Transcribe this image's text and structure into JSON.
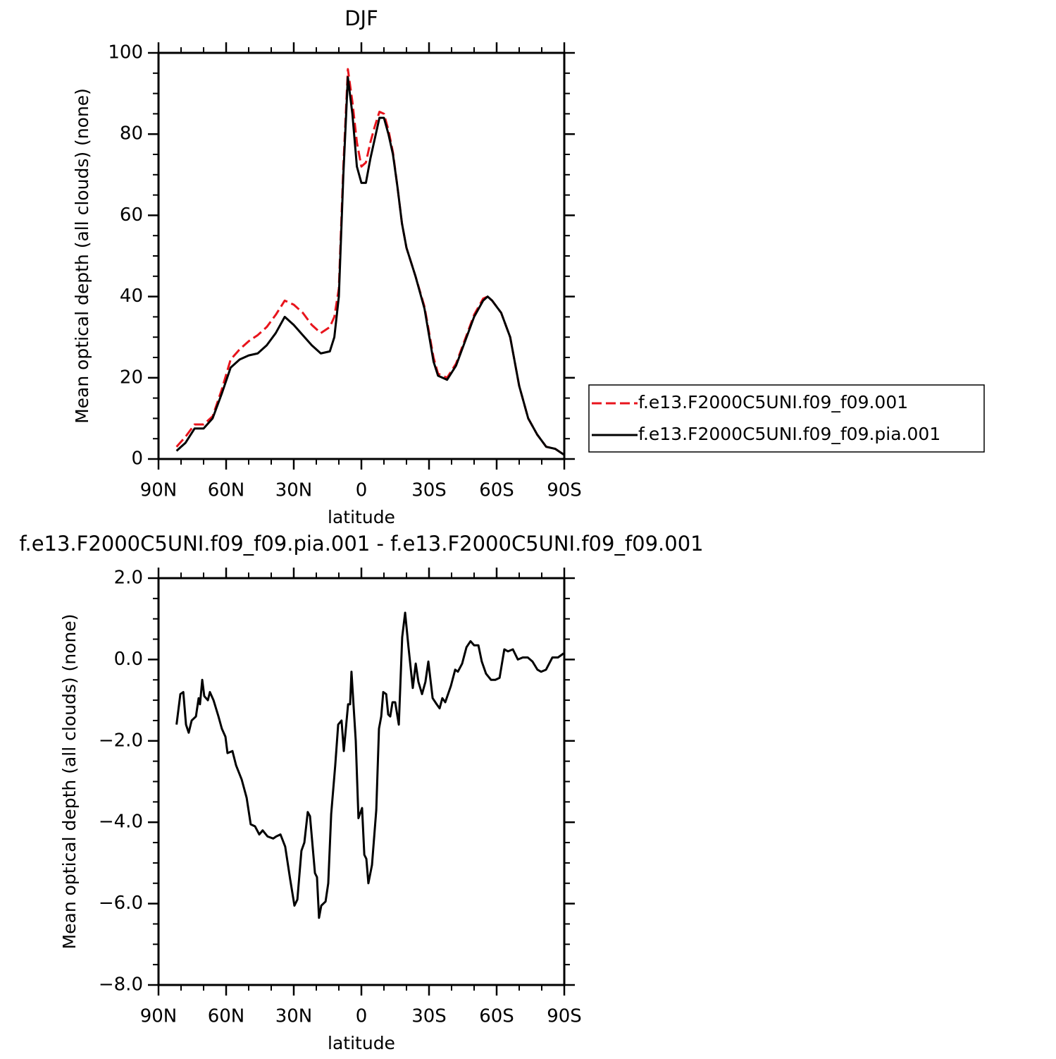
{
  "chart_data": [
    {
      "type": "line",
      "title": "DJF",
      "xlabel": "latitude",
      "ylabel": "Mean optical depth (all clouds) (none)",
      "xlim": [
        90,
        -90
      ],
      "xticks": [
        {
          "value": 90,
          "label": "90N"
        },
        {
          "value": 60,
          "label": "60N"
        },
        {
          "value": 30,
          "label": "30N"
        },
        0,
        {
          "value": -30,
          "label": "30S"
        },
        {
          "value": -60,
          "label": "60S"
        },
        {
          "value": -90,
          "label": "90S"
        }
      ],
      "minor_xticks": [
        80,
        70,
        50,
        40,
        20,
        10,
        -10,
        -20,
        -40,
        -50,
        -70,
        -80
      ],
      "ylim": [
        0,
        100
      ],
      "yticks": [
        0,
        20,
        40,
        60,
        80,
        100
      ],
      "minor_yticks": [
        5,
        10,
        15,
        25,
        30,
        35,
        45,
        50,
        55,
        65,
        70,
        75,
        85,
        90,
        95
      ],
      "legend": "right",
      "x": [
        82,
        78,
        74,
        70,
        66,
        62,
        58,
        54,
        50,
        46,
        42,
        38,
        34,
        30,
        26,
        22,
        18,
        14,
        12,
        10,
        8,
        6,
        4,
        2,
        0,
        -2,
        -4,
        -6,
        -8,
        -10,
        -12,
        -14,
        -16,
        -18,
        -20,
        -24,
        -28,
        -32,
        -34,
        -38,
        -42,
        -46,
        -50,
        -54,
        -56,
        -58,
        -62,
        -66,
        -70,
        -74,
        -78,
        -82,
        -86,
        -90
      ],
      "series": [
        {
          "name": "f.e13.F2000C5UNI.f09_f09.001",
          "color": "#e8141c",
          "line_style": "dashed",
          "values": [
            3,
            5.5,
            8.5,
            8.5,
            10.5,
            17,
            24.5,
            27,
            29,
            30.5,
            32.5,
            35.5,
            39,
            38,
            36,
            33,
            31,
            32.5,
            35,
            42,
            72,
            96,
            88,
            78,
            72,
            73,
            78,
            82,
            85.5,
            85,
            81,
            75.5,
            67,
            58,
            52,
            45,
            37.5,
            25,
            21,
            20,
            23.5,
            29.5,
            35.5,
            39.5,
            40,
            39,
            36,
            30,
            18,
            10,
            6,
            3,
            2.5,
            1
          ]
        },
        {
          "name": "f.e13.F2000C5UNI.f09_f09.pia.001",
          "color": "#000000",
          "line_style": "solid",
          "values": [
            2,
            4,
            7.5,
            7.5,
            10,
            16,
            22.5,
            24.5,
            25.5,
            26,
            28,
            31,
            35,
            33,
            30.5,
            28,
            26,
            26.5,
            30,
            40,
            70,
            94,
            85,
            72,
            68,
            68,
            74,
            79,
            84,
            84,
            80,
            75,
            67,
            58,
            52,
            45,
            37,
            24,
            20.5,
            19.5,
            23,
            29,
            35,
            39,
            40,
            39,
            36,
            30,
            18,
            10,
            6,
            3,
            2.5,
            1
          ]
        }
      ]
    },
    {
      "type": "line",
      "title": "f.e13.F2000C5UNI.f09_f09.pia.001 - f.e13.F2000C5UNI.f09_f09.001",
      "xlabel": "latitude",
      "ylabel": "Mean optical depth (all clouds) (none)",
      "xlim": [
        90,
        -90
      ],
      "xticks": [
        {
          "value": 90,
          "label": "90N"
        },
        {
          "value": 60,
          "label": "60N"
        },
        {
          "value": 30,
          "label": "30N"
        },
        0,
        {
          "value": -30,
          "label": "30S"
        },
        {
          "value": -60,
          "label": "60S"
        },
        {
          "value": -90,
          "label": "90S"
        }
      ],
      "minor_xticks": [
        80,
        70,
        50,
        40,
        20,
        10,
        -10,
        -20,
        -40,
        -50,
        -70,
        -80
      ],
      "ylim": [
        -8,
        2
      ],
      "yticks": [
        {
          "value": -8,
          "label": "−8.0"
        },
        {
          "value": -6,
          "label": "−6.0"
        },
        {
          "value": -4,
          "label": "−4.0"
        },
        {
          "value": -2,
          "label": "−2.0"
        },
        {
          "value": 0,
          "label": "0.0"
        },
        {
          "value": 2,
          "label": "2.0"
        }
      ],
      "minor_yticks": [
        -7.5,
        -7,
        -6.5,
        -5.5,
        -5,
        -4.5,
        -3.5,
        -3,
        -2.5,
        -1.5,
        -1,
        -0.5,
        0.5,
        1,
        1.5
      ],
      "x": [
        82,
        80.3,
        79,
        77.8,
        76.6,
        75.3,
        73.4,
        72.2,
        71.6,
        70.6,
        69.7,
        68.1,
        67.2,
        65.6,
        63.4,
        61.9,
        60.3,
        59.4,
        57.2,
        55.6,
        53.1,
        50.9,
        49.1,
        47.2,
        45.3,
        43.8,
        41.6,
        39.1,
        37.8,
        35.9,
        33.8,
        31.6,
        29.7,
        28.4,
        26.6,
        25.3,
        23.8,
        22.8,
        20.6,
        19.7,
        18.8,
        17.8,
        15.9,
        14.7,
        13.4,
        11.6,
        10.3,
        8.8,
        7.8,
        5.9,
        5,
        4.4,
        2.5,
        1.3,
        -0.3,
        -1.3,
        -2.2,
        -3.1,
        -4.7,
        -6.6,
        -7.8,
        -8.8,
        -9.7,
        -11,
        -11.9,
        -12.8,
        -13.8,
        -15,
        -16.6,
        -18.1,
        -19.4,
        -20.9,
        -22.8,
        -24.1,
        -25.3,
        -26.9,
        -28.4,
        -29.7,
        -31.6,
        -33.4,
        -34.7,
        -35.9,
        -37.2,
        -39.7,
        -41.6,
        -42.8,
        -44.7,
        -46.6,
        -48.4,
        -50,
        -51.9,
        -53.4,
        -55.3,
        -57.5,
        -59.4,
        -61.3,
        -63.4,
        -65,
        -67.2,
        -69.4,
        -71.6,
        -73.8,
        -75.9,
        -78.1,
        -79.7,
        -81.9,
        -84.7,
        -87.2,
        -89.7
      ],
      "series": [
        {
          "color": "#000000",
          "line_style": "solid",
          "values": [
            -1.6,
            -0.85,
            -0.8,
            -1.6,
            -1.8,
            -1.5,
            -1.4,
            -0.95,
            -1.1,
            -0.5,
            -0.9,
            -1.0,
            -0.8,
            -1.0,
            -1.4,
            -1.7,
            -1.9,
            -2.3,
            -2.25,
            -2.6,
            -2.95,
            -3.4,
            -4.05,
            -4.1,
            -4.3,
            -4.2,
            -4.35,
            -4.4,
            -4.35,
            -4.3,
            -4.6,
            -5.4,
            -6.05,
            -5.9,
            -4.7,
            -4.5,
            -3.75,
            -3.85,
            -5.25,
            -5.35,
            -6.35,
            -6.05,
            -5.95,
            -5.5,
            -3.8,
            -2.6,
            -1.6,
            -1.5,
            -2.25,
            -1.1,
            -1.1,
            -0.3,
            -2.0,
            -3.9,
            -3.65,
            -4.8,
            -4.9,
            -5.5,
            -5.05,
            -3.7,
            -1.7,
            -1.4,
            -0.8,
            -0.85,
            -1.35,
            -1.4,
            -1.05,
            -1.05,
            -1.6,
            0.55,
            1.15,
            0.3,
            -0.7,
            -0.1,
            -0.55,
            -0.85,
            -0.55,
            -0.05,
            -0.95,
            -1.1,
            -1.2,
            -0.95,
            -1.05,
            -0.65,
            -0.25,
            -0.3,
            -0.1,
            0.3,
            0.45,
            0.35,
            0.35,
            -0.05,
            -0.35,
            -0.5,
            -0.5,
            -0.45,
            0.25,
            0.2,
            0.25,
            0,
            0.05,
            0.05,
            -0.05,
            -0.25,
            -0.3,
            -0.25,
            0.05,
            0.05,
            0.15
          ]
        }
      ]
    }
  ]
}
